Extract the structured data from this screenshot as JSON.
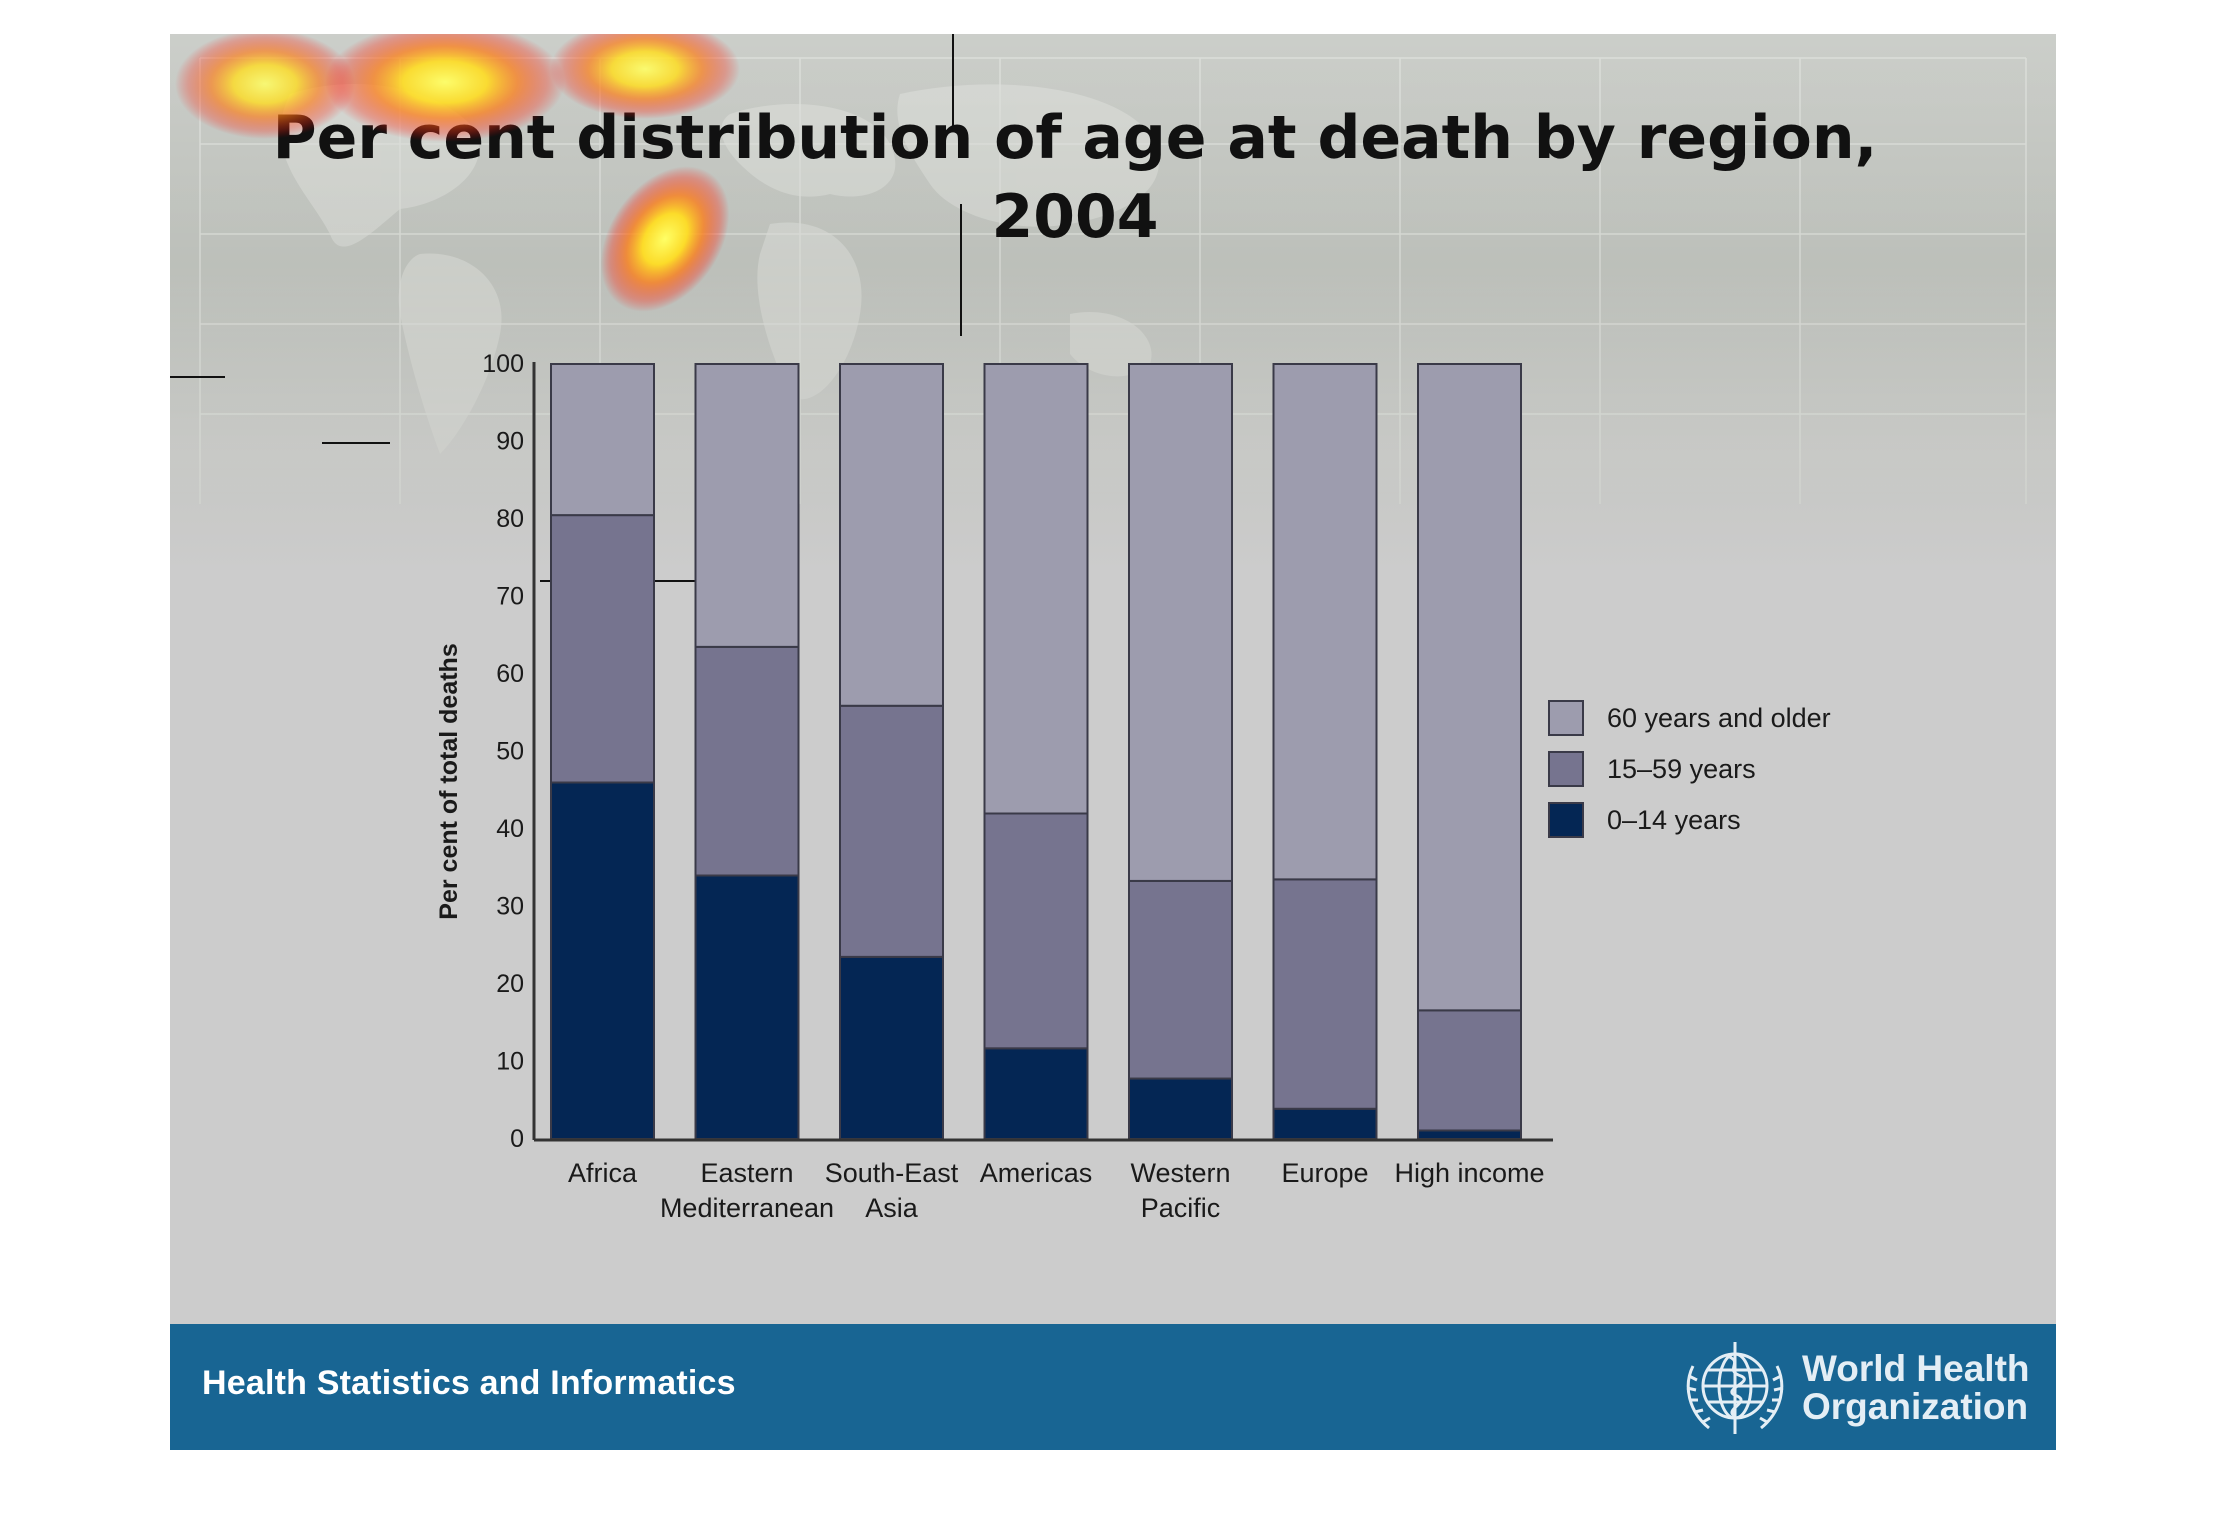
{
  "title_lines": [
    "Per cent distribution of age at death by region,",
    "2004"
  ],
  "footer": {
    "left_text": "Health Statistics and Informatics",
    "org_lines": [
      "World Health",
      "Organization"
    ],
    "logo_icon": "who-emblem-icon"
  },
  "colors": {
    "band_60_plus": "#9d9cae",
    "band_15_59": "#76748f",
    "band_0_14": "#042654",
    "footer": "#186593"
  },
  "chart_data": {
    "type": "bar",
    "stacked": true,
    "title": "Per cent distribution of age at death by region, 2004",
    "ylabel": "Per cent of total deaths",
    "xlabel": "",
    "ylim": [
      0,
      100
    ],
    "yticks": [
      0,
      10,
      20,
      30,
      40,
      50,
      60,
      70,
      80,
      90,
      100
    ],
    "grid": false,
    "legend_position": "right",
    "categories": [
      [
        "Africa"
      ],
      [
        "Eastern",
        "Mediterranean"
      ],
      [
        "South-East",
        "Asia"
      ],
      [
        "Americas"
      ],
      [
        "Western",
        "Pacific"
      ],
      [
        "Europe"
      ],
      [
        "High income"
      ]
    ],
    "series": [
      {
        "name": "0–14 years",
        "color": "#042654",
        "values": [
          46,
          34,
          23.5,
          11.7,
          7.8,
          3.9,
          1.1
        ]
      },
      {
        "name": "15–59 years",
        "color": "#76748f",
        "values": [
          34.5,
          29.5,
          32.4,
          30.3,
          25.5,
          29.6,
          15.5
        ]
      },
      {
        "name": "60 years and older",
        "color": "#9d9cae",
        "values": [
          19.5,
          36.5,
          44.1,
          58,
          66.7,
          66.5,
          83.4
        ]
      }
    ],
    "legend_order": [
      "60 years and older",
      "15–59 years",
      "0–14 years"
    ]
  }
}
